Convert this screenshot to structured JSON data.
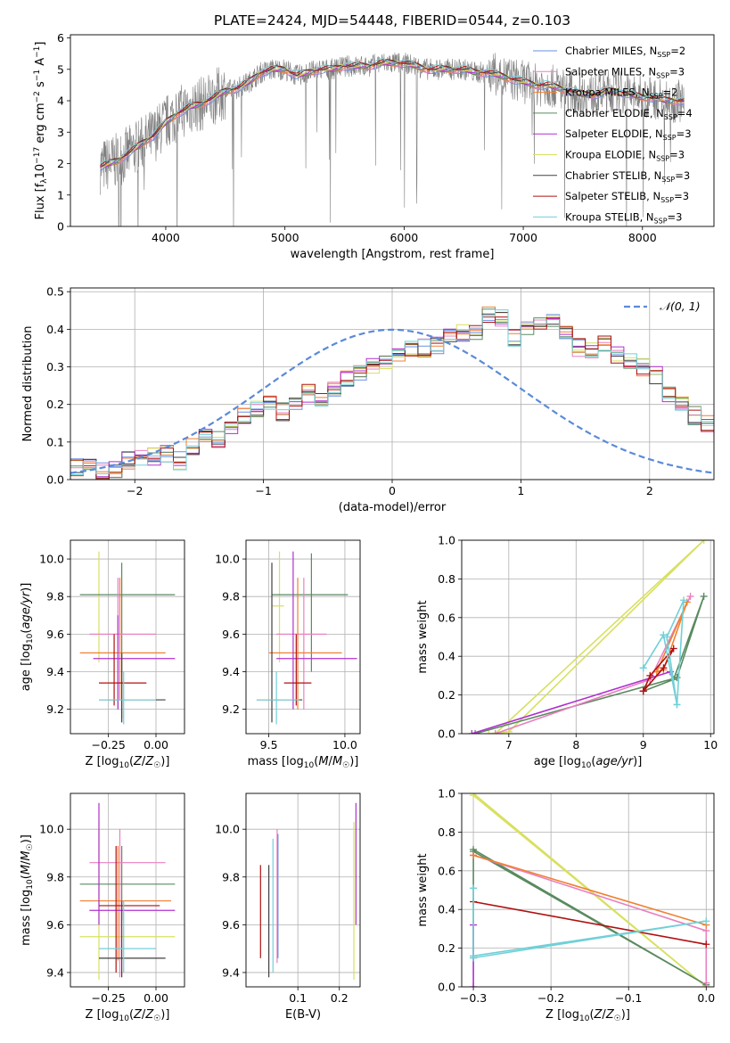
{
  "chart_data": [
    {
      "type": "line",
      "title": "PLATE=2424, MJD=54448, FIBERID=0544, z=0.103",
      "xlabel": "wavelength [Angstrom, rest frame]",
      "ylabel": "Flux [f_λ 10^-17 erg cm^-2 s^-1 A^-1]",
      "xlim": [
        3200,
        8600
      ],
      "ylim": [
        0,
        6.1
      ],
      "xticks": [
        4000,
        5000,
        6000,
        7000,
        8000
      ],
      "yticks": [
        0,
        1,
        2,
        3,
        4,
        5,
        6
      ],
      "legend_position": "right",
      "legend": [
        {
          "base": "Chabrier MILES, N",
          "sub": "SSP",
          "val": "=2",
          "color": "#6a8fe0"
        },
        {
          "base": "Salpeter MILES, N",
          "sub": "SSP",
          "val": "=3",
          "color": "#e880c0"
        },
        {
          "base": "Kroupa MILES, N",
          "sub": "SSP",
          "val": "=2",
          "color": "#f08030"
        },
        {
          "base": "Chabrier ELODIE, N",
          "sub": "SSP",
          "val": "=4",
          "color": "#5a8a60"
        },
        {
          "base": "Salpeter ELODIE, N",
          "sub": "SSP",
          "val": "=3",
          "color": "#b030d0"
        },
        {
          "base": "Kroupa ELODIE, N",
          "sub": "SSP",
          "val": "=3",
          "color": "#d8e060"
        },
        {
          "base": "Chabrier STELIB, N",
          "sub": "SSP",
          "val": "=3",
          "color": "#404040"
        },
        {
          "base": "Salpeter STELIB, N",
          "sub": "SSP",
          "val": "=3",
          "color": "#b01010"
        },
        {
          "base": "Kroupa STELIB, N",
          "sub": "SSP",
          "val": "=3",
          "color": "#70d0d8"
        }
      ],
      "spectrum_envelope": {
        "x": [
          3450,
          3600,
          3750,
          3900,
          4000,
          4100,
          4200,
          4300,
          4400,
          4500,
          4600,
          4700,
          4800,
          4900,
          5000,
          5100,
          5200,
          5300,
          5400,
          5500,
          5600,
          5700,
          5800,
          5900,
          6000,
          6100,
          6200,
          6300,
          6400,
          6500,
          6600,
          6700,
          6800,
          6900,
          7000,
          7100,
          7200,
          7300,
          7400,
          7500,
          7600,
          7700,
          7800,
          7900,
          8000,
          8100,
          8200,
          8350
        ],
        "y": [
          1.9,
          2.1,
          2.5,
          2.9,
          3.3,
          3.6,
          3.8,
          3.9,
          4.1,
          4.3,
          4.4,
          4.6,
          4.9,
          5.0,
          5.0,
          4.8,
          4.9,
          5.0,
          5.0,
          5.1,
          5.1,
          5.1,
          5.2,
          5.2,
          5.2,
          5.1,
          5.0,
          5.0,
          5.0,
          5.0,
          4.9,
          4.9,
          4.8,
          4.7,
          4.6,
          4.5,
          4.5,
          4.4,
          4.3,
          4.2,
          4.2,
          4.3,
          4.3,
          4.2,
          4.1,
          4.1,
          4.0,
          4.0
        ]
      }
    },
    {
      "type": "line",
      "xlabel": "(data-model)/error",
      "ylabel": "Normed distribution",
      "xlim": [
        -2.5,
        2.5
      ],
      "ylim": [
        0,
        0.51
      ],
      "xticks": [
        -2,
        -1,
        0,
        1,
        2
      ],
      "yticks": [
        0.0,
        0.1,
        0.2,
        0.3,
        0.4,
        0.5
      ],
      "legend": "𝒩(0, 1)",
      "legend_position": "top-right",
      "histogram_bin_width": 0.1,
      "histogram_mean_values": [
        0.03,
        0.03,
        0.02,
        0.03,
        0.05,
        0.06,
        0.06,
        0.07,
        0.05,
        0.09,
        0.11,
        0.11,
        0.13,
        0.17,
        0.19,
        0.2,
        0.18,
        0.21,
        0.23,
        0.22,
        0.24,
        0.27,
        0.28,
        0.3,
        0.31,
        0.34,
        0.35,
        0.35,
        0.36,
        0.38,
        0.39,
        0.39,
        0.44,
        0.43,
        0.38,
        0.4,
        0.41,
        0.42,
        0.39,
        0.35,
        0.34,
        0.36,
        0.33,
        0.31,
        0.3,
        0.28,
        0.23,
        0.2,
        0.17,
        0.15,
        0.13,
        0.12,
        0.1,
        0.08,
        0.07,
        0.06,
        0.05,
        0.05,
        0.04,
        0.04
      ]
    },
    {
      "type": "scatter",
      "xlabel": "Z [log₁₀(Z/Z☉)]",
      "ylabel": "age  [log₁₀(age/yr)]",
      "xlim": [
        -0.45,
        0.15
      ],
      "ylim": [
        9.07,
        10.1
      ],
      "xticks": [
        -0.25,
        0.0
      ],
      "yticks": [
        9.2,
        9.4,
        9.6,
        9.8,
        10.0
      ],
      "errorbars": [
        {
          "x": -0.3,
          "y": 9.75,
          "xerr": 0.0,
          "ylo": 9.45,
          "yhi": 10.04,
          "color": "#d8e060"
        },
        {
          "x": -0.18,
          "y": 9.81,
          "xlo": -0.4,
          "xhi": 0.1,
          "ylo": 9.15,
          "yhi": 9.98,
          "color": "#5a8a60"
        },
        {
          "x": -0.2,
          "y": 9.6,
          "xlo": -0.35,
          "xhi": 0.0,
          "ylo": 9.2,
          "yhi": 9.9,
          "color": "#e880c0"
        },
        {
          "x": -0.19,
          "y": 9.5,
          "xlo": -0.4,
          "xhi": 0.05,
          "ylo": 9.25,
          "yhi": 9.9,
          "color": "#f08030"
        },
        {
          "x": -0.2,
          "y": 9.47,
          "xlo": -0.33,
          "xhi": 0.1,
          "ylo": 9.2,
          "yhi": 9.7,
          "color": "#b030d0"
        },
        {
          "x": -0.22,
          "y": 9.34,
          "xlo": -0.3,
          "xhi": -0.05,
          "ylo": 9.22,
          "yhi": 9.6,
          "color": "#b01010"
        },
        {
          "x": -0.18,
          "y": 9.25,
          "xlo": -0.3,
          "xhi": 0.05,
          "ylo": 9.13,
          "yhi": 9.5,
          "color": "#404040"
        },
        {
          "x": -0.17,
          "y": 9.25,
          "xlo": -0.3,
          "xhi": 0.0,
          "ylo": 9.12,
          "yhi": 9.4,
          "color": "#70d0d8"
        }
      ]
    },
    {
      "type": "scatter",
      "xlabel": "mass [log₁₀(M/M☉)]",
      "xlim": [
        9.35,
        10.1
      ],
      "ylim": [
        9.07,
        10.1
      ],
      "xticks": [
        9.5,
        10.0
      ],
      "yticks": [
        9.2,
        9.4,
        9.6,
        9.8,
        10.0
      ],
      "errorbars": [
        {
          "x": 9.57,
          "y": 9.75,
          "xlo": 9.52,
          "xhi": 9.6,
          "ylo": 9.45,
          "yhi": 10.04,
          "color": "#d8e060"
        },
        {
          "x": 9.78,
          "y": 9.81,
          "xlo": 9.52,
          "xhi": 10.02,
          "ylo": 9.4,
          "yhi": 10.03,
          "color": "#5a8a60"
        },
        {
          "x": 9.73,
          "y": 9.6,
          "xlo": 9.55,
          "xhi": 9.88,
          "ylo": 9.2,
          "yhi": 9.9,
          "color": "#e880c0"
        },
        {
          "x": 9.69,
          "y": 9.5,
          "xlo": 9.5,
          "xhi": 9.98,
          "ylo": 9.2,
          "yhi": 9.9,
          "color": "#f08030"
        },
        {
          "x": 9.66,
          "y": 9.47,
          "xlo": 9.55,
          "xhi": 10.08,
          "ylo": 9.2,
          "yhi": 10.04,
          "color": "#b030d0"
        },
        {
          "x": 9.68,
          "y": 9.34,
          "xlo": 9.6,
          "xhi": 9.78,
          "ylo": 9.22,
          "yhi": 9.6,
          "color": "#b01010"
        },
        {
          "x": 9.52,
          "y": 9.25,
          "xlo": 9.42,
          "xhi": 9.72,
          "ylo": 9.13,
          "yhi": 9.98,
          "color": "#404040"
        },
        {
          "x": 9.55,
          "y": 9.25,
          "xlo": 9.42,
          "xhi": 9.7,
          "ylo": 9.12,
          "yhi": 9.4,
          "color": "#70d0d8"
        }
      ]
    },
    {
      "type": "line",
      "xlabel": "age  [log₁₀(age/yr)]",
      "ylabel": "mass weight",
      "xlim": [
        6.3,
        10.05
      ],
      "ylim": [
        0,
        1.0
      ],
      "xticks": [
        7,
        8,
        9,
        10
      ],
      "yticks": [
        0.0,
        0.2,
        0.4,
        0.6,
        0.8,
        1.0
      ],
      "series": [
        {
          "color": "#d8e060",
          "x": [
            6.7,
            7.0,
            9.9,
            6.8
          ],
          "y": [
            0.0,
            0.01,
            1.0,
            0.0
          ]
        },
        {
          "color": "#5a8a60",
          "x": [
            6.5,
            9.5,
            9.9,
            9.45,
            9.0
          ],
          "y": [
            0.0,
            0.29,
            0.71,
            0.28,
            0.22
          ]
        },
        {
          "color": "#e880c0",
          "x": [
            6.8,
            9.1,
            9.7,
            9.1
          ],
          "y": [
            0.0,
            0.28,
            0.71,
            0.28
          ]
        },
        {
          "color": "#f08030",
          "x": [
            9.2,
            9.3,
            9.65,
            9.2
          ],
          "y": [
            0.32,
            0.33,
            0.68,
            0.32
          ]
        },
        {
          "color": "#b030d0",
          "x": [
            6.45,
            9.4
          ],
          "y": [
            0.0,
            0.32
          ]
        },
        {
          "color": "#b01010",
          "x": [
            9.0,
            9.3,
            9.45,
            9.1,
            9.0
          ],
          "y": [
            0.22,
            0.34,
            0.44,
            0.3,
            0.22
          ]
        },
        {
          "color": "#70d0d8",
          "x": [
            9.0,
            9.3,
            9.0,
            9.3,
            9.5,
            9.35,
            9.6,
            9.5
          ],
          "y": [
            0.34,
            0.51,
            0.34,
            0.51,
            0.15,
            0.5,
            0.69,
            0.15
          ]
        }
      ]
    },
    {
      "type": "scatter",
      "xlabel": "Z [log₁₀(Z/Z☉)]",
      "ylabel": "mass [log₁₀(M/M☉)]",
      "xlim": [
        -0.45,
        0.15
      ],
      "ylim": [
        9.34,
        10.15
      ],
      "xticks": [
        -0.25,
        0.0
      ],
      "yticks": [
        9.4,
        9.6,
        9.8,
        10.0
      ],
      "errorbars": [
        {
          "x": -0.3,
          "y": 9.55,
          "xlo": -0.4,
          "xhi": 0.1,
          "ylo": 9.37,
          "yhi": 10.03,
          "color": "#d8e060"
        },
        {
          "x": -0.18,
          "y": 9.77,
          "xlo": -0.4,
          "xhi": 0.1,
          "ylo": 9.62,
          "yhi": 9.93,
          "color": "#5a8a60"
        },
        {
          "x": -0.19,
          "y": 9.86,
          "xlo": -0.35,
          "xhi": 0.05,
          "ylo": 9.38,
          "yhi": 10.0,
          "color": "#e880c0"
        },
        {
          "x": -0.2,
          "y": 9.7,
          "xlo": -0.4,
          "xhi": 0.08,
          "ylo": 9.45,
          "yhi": 9.93,
          "color": "#f08030"
        },
        {
          "x": -0.3,
          "y": 9.66,
          "xlo": -0.35,
          "xhi": 0.1,
          "ylo": 9.6,
          "yhi": 10.11,
          "color": "#b030d0"
        },
        {
          "x": -0.21,
          "y": 9.68,
          "xlo": -0.3,
          "xhi": 0.02,
          "ylo": 9.4,
          "yhi": 9.93,
          "color": "#b01010"
        },
        {
          "x": -0.18,
          "y": 9.46,
          "xlo": -0.3,
          "xhi": 0.05,
          "ylo": 9.38,
          "yhi": 9.7,
          "color": "#404040"
        },
        {
          "x": -0.17,
          "y": 9.5,
          "xlo": -0.3,
          "xhi": 0.0,
          "ylo": 9.4,
          "yhi": 9.7,
          "color": "#70d0d8"
        }
      ]
    },
    {
      "type": "scatter",
      "xlabel": "E(B-V)",
      "xlim": [
        -0.025,
        0.25
      ],
      "ylim": [
        9.34,
        10.15
      ],
      "xticks": [
        0.1,
        0.2
      ],
      "yticks": [
        9.4,
        9.6,
        9.8,
        10.0
      ],
      "errorbars": [
        {
          "x": 0.01,
          "y": 9.65,
          "ylo": 9.46,
          "yhi": 9.85,
          "color": "#b01010"
        },
        {
          "x": 0.03,
          "y": 9.6,
          "ylo": 9.38,
          "yhi": 9.85,
          "color": "#404040"
        },
        {
          "x": 0.04,
          "y": 9.7,
          "ylo": 9.4,
          "yhi": 9.96,
          "color": "#70d0d8"
        },
        {
          "x": 0.05,
          "y": 9.7,
          "ylo": 9.44,
          "yhi": 10.0,
          "color": "#e880c0"
        },
        {
          "x": 0.052,
          "y": 9.7,
          "ylo": 9.46,
          "yhi": 9.98,
          "color": "#6a8fe0"
        },
        {
          "x": 0.235,
          "y": 9.7,
          "ylo": 9.37,
          "yhi": 10.03,
          "color": "#d8e060"
        },
        {
          "x": 0.24,
          "y": 9.8,
          "ylo": 9.6,
          "yhi": 10.11,
          "color": "#b030d0"
        }
      ]
    },
    {
      "type": "line",
      "xlabel": "Z [log₁₀(Z/Z☉)]",
      "ylabel": "mass weight",
      "xlim": [
        -0.315,
        0.01
      ],
      "ylim": [
        0,
        1.0
      ],
      "xticks": [
        -0.3,
        -0.2,
        -0.1,
        0.0
      ],
      "yticks": [
        0.0,
        0.2,
        0.4,
        0.6,
        0.8,
        1.0
      ],
      "series": [
        {
          "color": "#d8e060",
          "x": [
            -0.3,
            0.0,
            -0.3
          ],
          "y": [
            1.0,
            0.0,
            0.99
          ]
        },
        {
          "color": "#5a8a60",
          "x": [
            -0.3,
            -0.3,
            0.0,
            -0.3
          ],
          "y": [
            0.15,
            0.71,
            0.01,
            0.7
          ]
        },
        {
          "color": "#e880c0",
          "x": [
            -0.3,
            0.0,
            0.0
          ],
          "y": [
            0.68,
            0.29,
            0.02
          ]
        },
        {
          "color": "#f08030",
          "x": [
            -0.3,
            0.0
          ],
          "y": [
            0.68,
            0.32
          ]
        },
        {
          "color": "#b030d0",
          "x": [
            -0.3,
            -0.3
          ],
          "y": [
            0.0,
            0.32
          ]
        },
        {
          "color": "#b01010",
          "x": [
            -0.3,
            0.0
          ],
          "y": [
            0.44,
            0.22
          ]
        },
        {
          "color": "#70d0d8",
          "x": [
            -0.3,
            0.0,
            -0.3,
            -0.3
          ],
          "y": [
            0.16,
            0.34,
            0.15,
            0.51
          ]
        }
      ]
    }
  ]
}
